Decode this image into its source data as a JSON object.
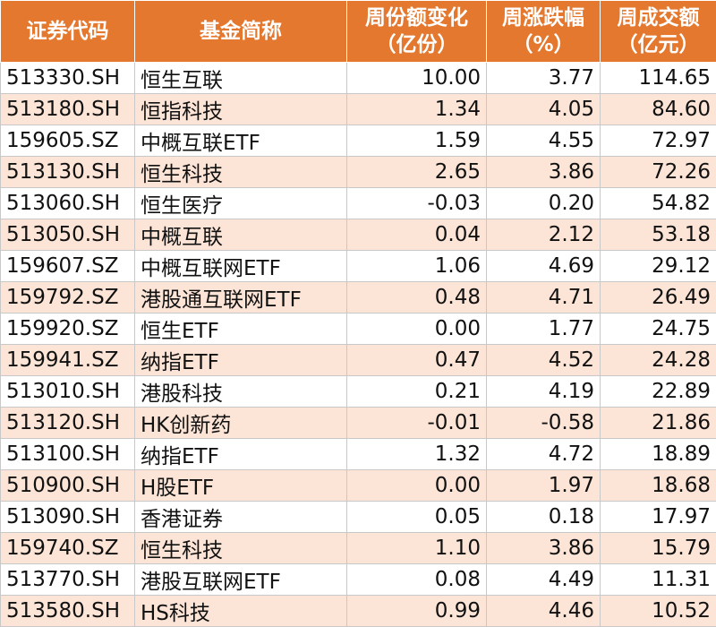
{
  "headers": [
    {
      "line1": "证券代码",
      "line2": ""
    },
    {
      "line1": "基金简称",
      "line2": ""
    },
    {
      "line1": "周份额变化",
      "line2": "（亿份）"
    },
    {
      "line1": "周涨跌幅",
      "line2": "（%）"
    },
    {
      "line1": "周成交额",
      "line2": "（亿元）"
    }
  ],
  "rows": [
    {
      "code": "513330.SH",
      "name": "恒生互联",
      "share_change": "10.00",
      "pct_change": "3.77",
      "turnover": "114.65"
    },
    {
      "code": "513180.SH",
      "name": "恒指科技",
      "share_change": "1.34",
      "pct_change": "4.05",
      "turnover": "84.60"
    },
    {
      "code": "159605.SZ",
      "name": "中概互联ETF",
      "share_change": "1.59",
      "pct_change": "4.55",
      "turnover": "72.97"
    },
    {
      "code": "513130.SH",
      "name": "恒生科技",
      "share_change": "2.65",
      "pct_change": "3.86",
      "turnover": "72.26"
    },
    {
      "code": "513060.SH",
      "name": "恒生医疗",
      "share_change": "-0.03",
      "pct_change": "0.20",
      "turnover": "54.82"
    },
    {
      "code": "513050.SH",
      "name": "中概互联",
      "share_change": "0.04",
      "pct_change": "2.12",
      "turnover": "53.18"
    },
    {
      "code": "159607.SZ",
      "name": "中概互联网ETF",
      "share_change": "1.06",
      "pct_change": "4.69",
      "turnover": "29.12"
    },
    {
      "code": "159792.SZ",
      "name": "港股通互联网ETF",
      "share_change": "0.48",
      "pct_change": "4.71",
      "turnover": "26.49"
    },
    {
      "code": "159920.SZ",
      "name": "恒生ETF",
      "share_change": "0.00",
      "pct_change": "1.77",
      "turnover": "24.75"
    },
    {
      "code": "159941.SZ",
      "name": "纳指ETF",
      "share_change": "0.47",
      "pct_change": "4.52",
      "turnover": "24.28"
    },
    {
      "code": "513010.SH",
      "name": "港股科技",
      "share_change": "0.21",
      "pct_change": "4.19",
      "turnover": "22.89"
    },
    {
      "code": "513120.SH",
      "name": "HK创新药",
      "share_change": "-0.01",
      "pct_change": "-0.58",
      "turnover": "21.86"
    },
    {
      "code": "513100.SH",
      "name": "纳指ETF",
      "share_change": "1.32",
      "pct_change": "4.72",
      "turnover": "18.89"
    },
    {
      "code": "510900.SH",
      "name": "H股ETF",
      "share_change": "0.00",
      "pct_change": "1.97",
      "turnover": "18.68"
    },
    {
      "code": "513090.SH",
      "name": "香港证券",
      "share_change": "0.05",
      "pct_change": "0.18",
      "turnover": "17.97"
    },
    {
      "code": "159740.SZ",
      "name": "恒生科技",
      "share_change": "1.10",
      "pct_change": "3.86",
      "turnover": "15.79"
    },
    {
      "code": "513770.SH",
      "name": "港股互联网ETF",
      "share_change": "0.08",
      "pct_change": "4.49",
      "turnover": "11.31"
    },
    {
      "code": "513580.SH",
      "name": "HS科技",
      "share_change": "0.99",
      "pct_change": "4.46",
      "turnover": "10.52"
    }
  ]
}
